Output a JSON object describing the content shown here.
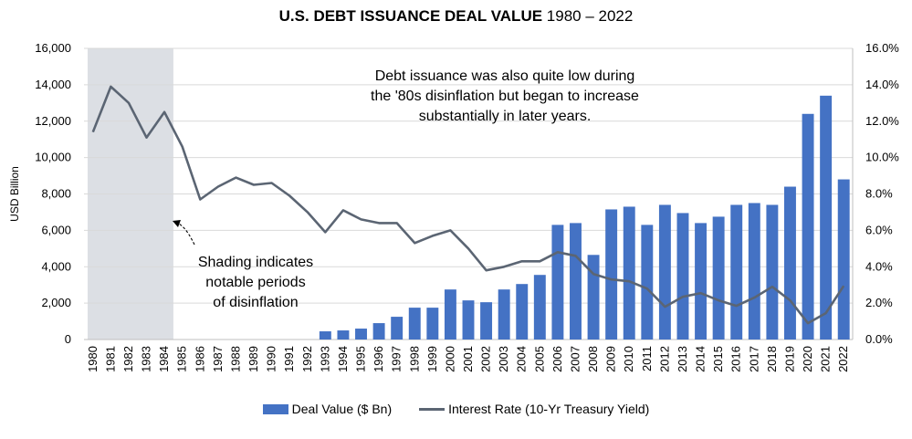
{
  "title": {
    "bold_part": "U.S. DEBT ISSUANCE DEAL VALUE",
    "rest": " 1980 – 2022"
  },
  "colors": {
    "bar": "#4472C4",
    "line": "#5B6573",
    "shade": "#DCDFE4",
    "grid": "#D9D9D9",
    "axis": "#BFBFBF"
  },
  "annotation_top": [
    "Debt issuance was also quite low during",
    "the '80s disinflation but began to increase",
    "substantially in later years."
  ],
  "annotation_shade": [
    "Shading indicates",
    "notable periods",
    "of disinflation"
  ],
  "chart_data": {
    "type": "bar+line",
    "title": "U.S. DEBT ISSUANCE DEAL VALUE 1980 – 2022",
    "ylabel": "USD Billion",
    "ylim": [
      0,
      16000
    ],
    "y2lim": [
      0,
      16
    ],
    "yticks": [
      "0",
      "2,000",
      "4,000",
      "6,000",
      "8,000",
      "10,000",
      "12,000",
      "14,000",
      "16,000"
    ],
    "y2ticks": [
      "0.0%",
      "2.0%",
      "4.0%",
      "6.0%",
      "8.0%",
      "10.0%",
      "12.0%",
      "14.0%",
      "16.0%"
    ],
    "categories": [
      "1980",
      "1981",
      "1982",
      "1983",
      "1984",
      "1985",
      "1986",
      "1987",
      "1988",
      "1989",
      "1990",
      "1991",
      "1992",
      "1993",
      "1994",
      "1995",
      "1996",
      "1997",
      "1998",
      "1999",
      "2000",
      "2001",
      "2002",
      "2003",
      "2004",
      "2005",
      "2006",
      "2007",
      "2008",
      "2009",
      "2010",
      "2011",
      "2012",
      "2013",
      "2014",
      "2015",
      "2016",
      "2017",
      "2018",
      "2019",
      "2020",
      "2021",
      "2022"
    ],
    "shaded_range": [
      "1980",
      "1984"
    ],
    "series": [
      {
        "name": "Deal Value ($ Bn)",
        "type": "bar",
        "axis": "left",
        "values": [
          0,
          0,
          0,
          0,
          0,
          0,
          0,
          0,
          0,
          0,
          0,
          0,
          0,
          450,
          500,
          600,
          900,
          1250,
          1750,
          1750,
          2750,
          2150,
          2050,
          2750,
          3050,
          3550,
          6300,
          6400,
          4650,
          7150,
          7300,
          6300,
          7400,
          6950,
          6400,
          6750,
          7400,
          7500,
          7400,
          8400,
          12400,
          13400,
          8800
        ]
      },
      {
        "name": "Interest Rate (10-Yr Treasury Yield)",
        "type": "line",
        "axis": "right",
        "values": [
          11.4,
          13.9,
          13.0,
          11.1,
          12.5,
          10.6,
          7.7,
          8.4,
          8.9,
          8.5,
          8.6,
          7.9,
          7.0,
          5.9,
          7.1,
          6.6,
          6.4,
          6.4,
          5.3,
          5.7,
          6.0,
          5.0,
          3.8,
          4.0,
          4.3,
          4.3,
          4.8,
          4.6,
          3.6,
          3.3,
          3.2,
          2.8,
          1.8,
          2.35,
          2.55,
          2.15,
          1.85,
          2.3,
          2.9,
          2.15,
          0.9,
          1.45,
          2.95
        ]
      }
    ],
    "legend_position": "bottom",
    "grid": true
  }
}
